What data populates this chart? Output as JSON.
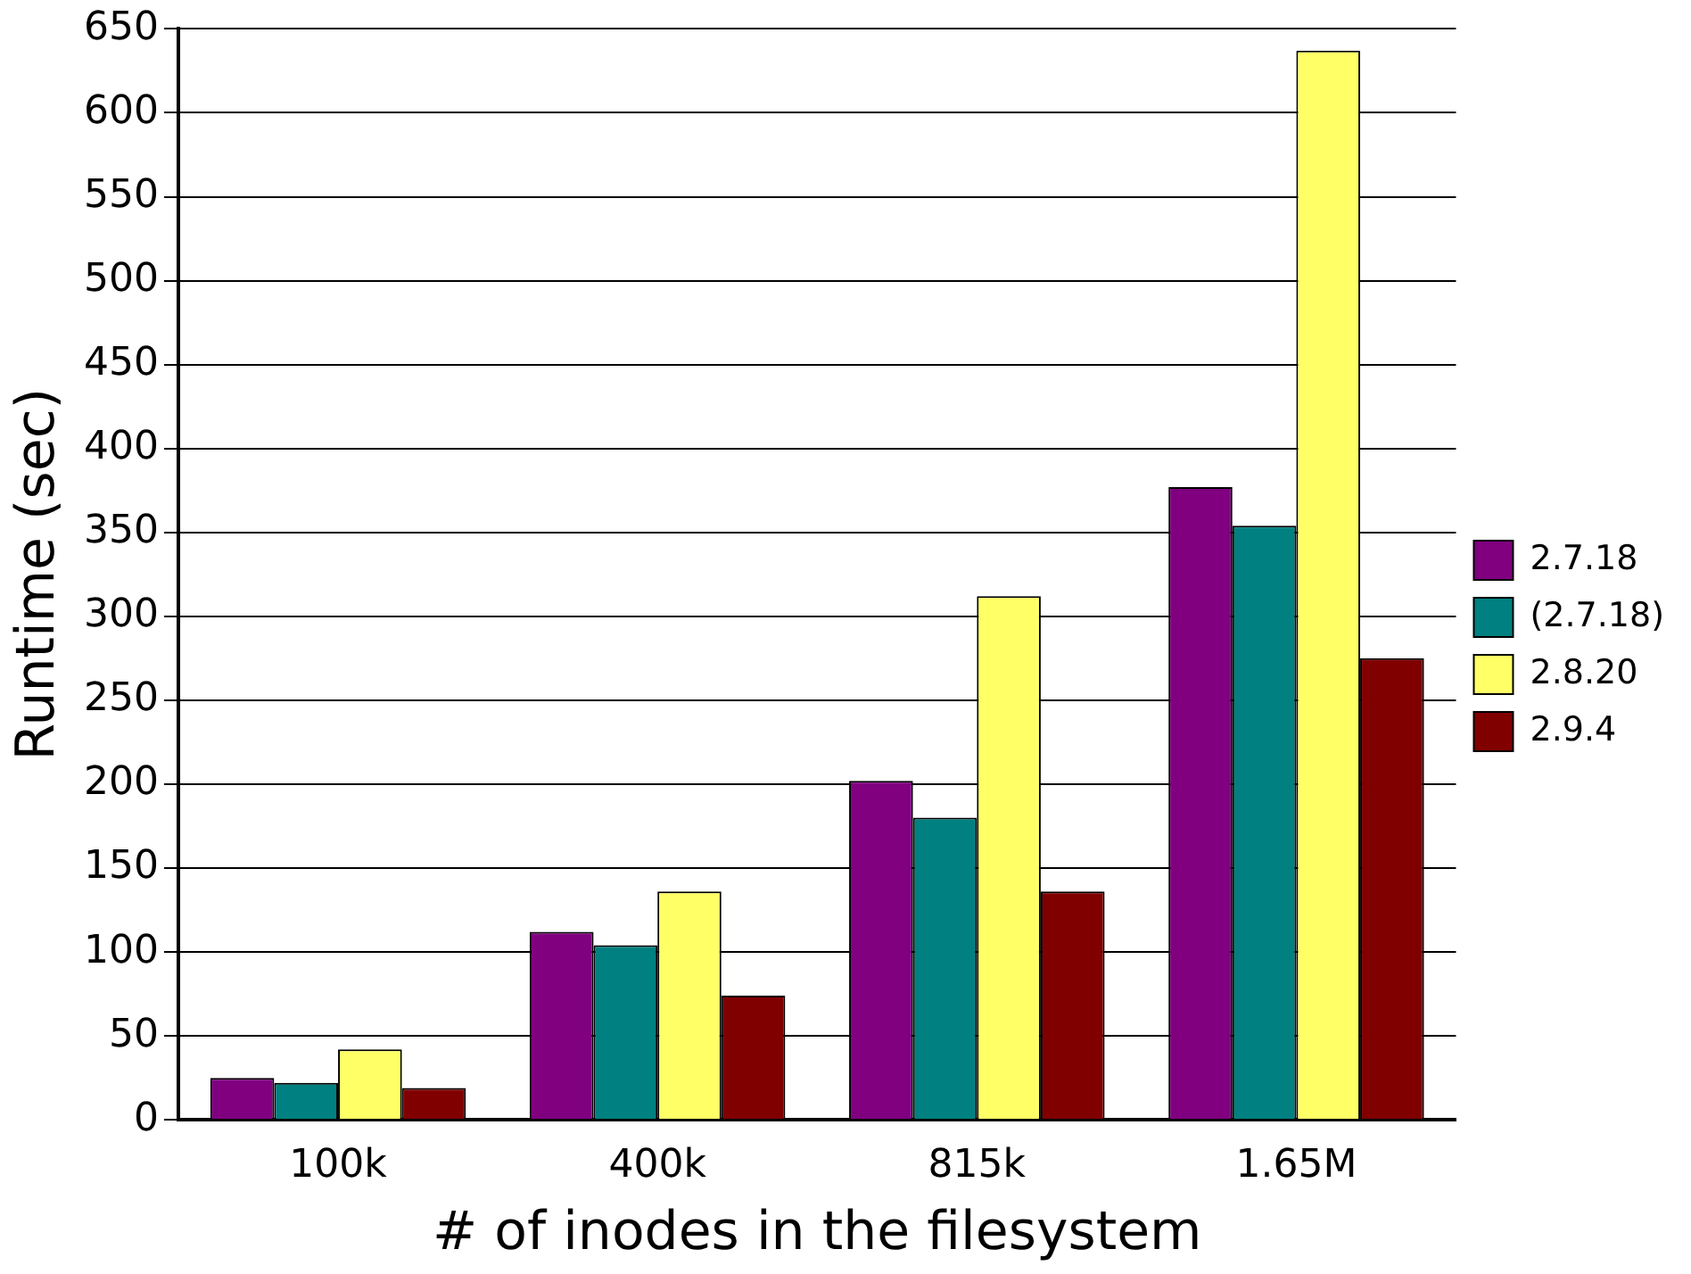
{
  "chart_data": {
    "type": "bar",
    "xlabel": "# of inodes in the filesystem",
    "ylabel": "Runtime (sec)",
    "categories": [
      "100k",
      "400k",
      "815k",
      "1.65M"
    ],
    "series": [
      {
        "name": "2.7.18",
        "color": "#800080",
        "values": [
          25,
          112,
          202,
          377
        ]
      },
      {
        "name": "(2.7.18)",
        "color": "#008080",
        "values": [
          22,
          104,
          180,
          354
        ]
      },
      {
        "name": "2.8.20",
        "color": "#ffff66",
        "values": [
          42,
          136,
          312,
          637
        ]
      },
      {
        "name": "2.9.4",
        "color": "#800000",
        "values": [
          19,
          74,
          136,
          275
        ]
      }
    ],
    "ylim": [
      0,
      650
    ],
    "yticks": [
      0,
      50,
      100,
      150,
      200,
      250,
      300,
      350,
      400,
      450,
      500,
      550,
      600,
      650
    ],
    "grid": "y",
    "legend": "right"
  }
}
